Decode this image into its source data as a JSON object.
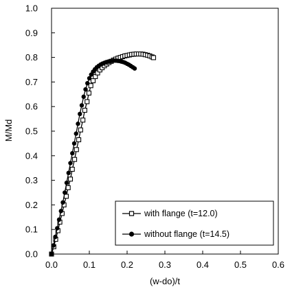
{
  "chart_data": {
    "type": "line",
    "xlabel": "(w-do)/t",
    "ylabel": "M/Md",
    "xlim": [
      0.0,
      0.6
    ],
    "ylim": [
      0.0,
      1.0
    ],
    "x_ticks": [
      "0.0",
      "0.1",
      "0.2",
      "0.3",
      "0.4",
      "0.5",
      "0.6"
    ],
    "y_ticks": [
      "0.0",
      "0.1",
      "0.2",
      "0.3",
      "0.4",
      "0.5",
      "0.6",
      "0.7",
      "0.8",
      "0.9",
      "1.0"
    ],
    "grid": false,
    "legend_position": "bottom-right",
    "series": [
      {
        "name": "with flange (t=12.0)",
        "marker": "open-square",
        "color": "#000000",
        "x": [
          0.0,
          0.006,
          0.011,
          0.017,
          0.022,
          0.028,
          0.033,
          0.039,
          0.044,
          0.05,
          0.055,
          0.061,
          0.066,
          0.072,
          0.077,
          0.083,
          0.088,
          0.094,
          0.099,
          0.104,
          0.11,
          0.116,
          0.122,
          0.128,
          0.134,
          0.14,
          0.146,
          0.152,
          0.158,
          0.164,
          0.17,
          0.176,
          0.182,
          0.188,
          0.194,
          0.2,
          0.206,
          0.212,
          0.218,
          0.224,
          0.23,
          0.236,
          0.242,
          0.248,
          0.254,
          0.26,
          0.266,
          0.27
        ],
        "y": [
          0.0,
          0.03,
          0.06,
          0.095,
          0.13,
          0.165,
          0.2,
          0.235,
          0.27,
          0.305,
          0.345,
          0.385,
          0.425,
          0.465,
          0.505,
          0.545,
          0.585,
          0.62,
          0.655,
          0.685,
          0.705,
          0.722,
          0.737,
          0.749,
          0.758,
          0.766,
          0.773,
          0.779,
          0.784,
          0.789,
          0.793,
          0.797,
          0.8,
          0.803,
          0.806,
          0.808,
          0.81,
          0.812,
          0.813,
          0.814,
          0.814,
          0.814,
          0.813,
          0.811,
          0.809,
          0.806,
          0.802,
          0.799
        ]
      },
      {
        "name": "without flange (t=14.5)",
        "marker": "filled-circle",
        "color": "#000000",
        "x": [
          0.0,
          0.005,
          0.01,
          0.015,
          0.02,
          0.025,
          0.03,
          0.035,
          0.04,
          0.045,
          0.05,
          0.055,
          0.06,
          0.065,
          0.07,
          0.075,
          0.08,
          0.085,
          0.09,
          0.095,
          0.1,
          0.105,
          0.11,
          0.115,
          0.12,
          0.125,
          0.13,
          0.135,
          0.14,
          0.145,
          0.15,
          0.155,
          0.16,
          0.165,
          0.17,
          0.175,
          0.18,
          0.185,
          0.19,
          0.195,
          0.2,
          0.205,
          0.21,
          0.215,
          0.22
        ],
        "y": [
          0.0,
          0.035,
          0.07,
          0.105,
          0.14,
          0.175,
          0.21,
          0.25,
          0.29,
          0.33,
          0.37,
          0.41,
          0.45,
          0.49,
          0.53,
          0.57,
          0.605,
          0.64,
          0.67,
          0.695,
          0.715,
          0.73,
          0.742,
          0.752,
          0.76,
          0.766,
          0.771,
          0.775,
          0.778,
          0.781,
          0.783,
          0.785,
          0.786,
          0.787,
          0.787,
          0.786,
          0.785,
          0.783,
          0.781,
          0.778,
          0.774,
          0.77,
          0.765,
          0.76,
          0.755
        ]
      }
    ]
  }
}
